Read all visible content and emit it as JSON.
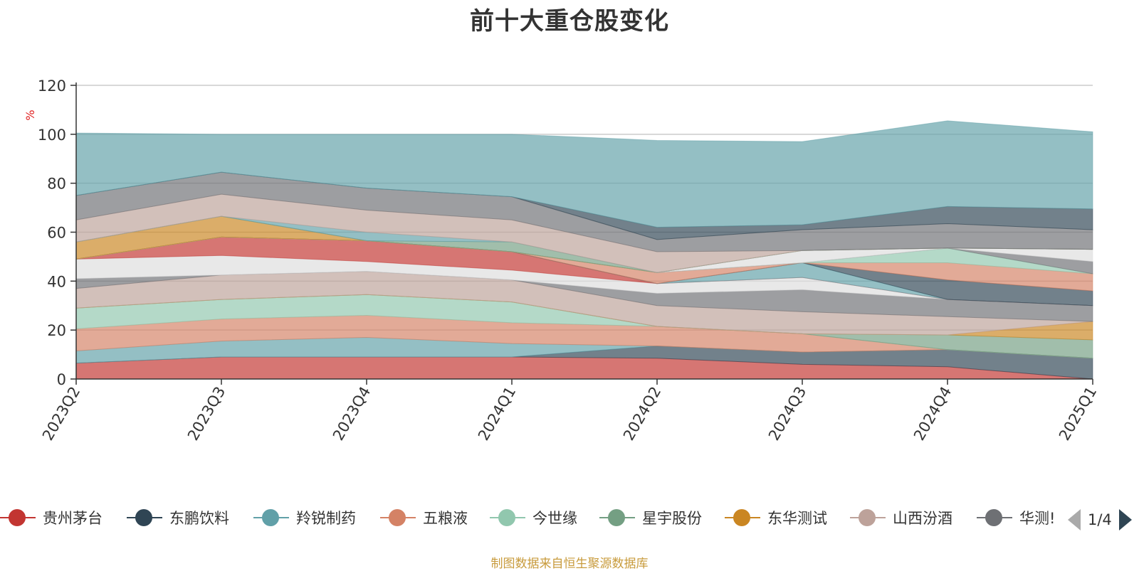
{
  "title": "前十大重仓股变化",
  "source_note": "制图数据来自恒生聚源数据库",
  "pager": {
    "text": "1/4"
  },
  "legend_items": [
    {
      "name": "贵州茅台",
      "color": "#c23531"
    },
    {
      "name": "东鹏饮料",
      "color": "#2f4554"
    },
    {
      "name": "羚锐制药",
      "color": "#61a0a8"
    },
    {
      "name": "五粮液",
      "color": "#d48265"
    },
    {
      "name": "今世缘",
      "color": "#91c7ae"
    },
    {
      "name": "星宇股份",
      "color": "#749f83"
    },
    {
      "name": "东华测试",
      "color": "#ca8622"
    },
    {
      "name": "山西汾酒",
      "color": "#bda29a"
    },
    {
      "name": "华测!",
      "color": "#6e7074"
    }
  ],
  "chart_data": {
    "type": "area",
    "stacked": true,
    "title": "前十大重仓股变化",
    "ylabel": "%",
    "ylim": [
      0,
      120
    ],
    "yticks": [
      0,
      20,
      40,
      60,
      80,
      100,
      120
    ],
    "grid": true,
    "legend_position": "bottom",
    "categories": [
      "2023Q2",
      "2023Q3",
      "2023Q4",
      "2024Q1",
      "2024Q2",
      "2024Q3",
      "2024Q4",
      "2025Q1"
    ],
    "bands": [
      {
        "color": "#c23531",
        "values": [
          6.5,
          9,
          9,
          9,
          8.5,
          6,
          5,
          0
        ]
      },
      {
        "color": "#2f4554",
        "values": [
          0,
          0,
          0,
          0,
          5,
          5,
          7,
          8.5
        ]
      },
      {
        "color": "#61a0a8",
        "values": [
          5,
          6.5,
          8,
          5.5,
          0,
          0,
          0,
          0
        ]
      },
      {
        "color": "#d48265",
        "values": [
          9,
          9,
          9,
          8.5,
          8,
          7.5,
          0,
          0
        ]
      },
      {
        "color": "#91c7ae",
        "values": [
          8.5,
          8,
          8.5,
          8.5,
          0,
          0,
          0,
          0
        ]
      },
      {
        "color": "#749f83",
        "values": [
          0,
          0,
          0,
          0,
          0,
          0,
          6,
          7.5
        ]
      },
      {
        "color": "#ca8622",
        "values": [
          0,
          0,
          0,
          0,
          0,
          0,
          0,
          7.5
        ]
      },
      {
        "color": "#bda29a",
        "values": [
          8,
          10,
          9.5,
          9,
          8.5,
          9,
          7.5,
          0
        ]
      },
      {
        "color": "#6e7074",
        "values": [
          4,
          0,
          0,
          0,
          5,
          9,
          7,
          6.5
        ]
      },
      {
        "color": "#dddddd",
        "values": [
          8,
          8,
          4,
          4,
          4,
          5,
          0,
          0
        ]
      },
      {
        "color": "#c23531",
        "values": [
          0,
          7.5,
          8.5,
          7.5,
          0,
          0,
          0,
          0
        ]
      },
      {
        "color": "#61a0a8",
        "values": [
          0,
          0,
          0,
          0,
          0,
          6,
          0,
          0
        ]
      },
      {
        "color": "#2f4554",
        "values": [
          0,
          0,
          0,
          0,
          0,
          0,
          8,
          6
        ]
      },
      {
        "color": "#d48265",
        "values": [
          0,
          0,
          0,
          0,
          4.5,
          0,
          7,
          7
        ]
      },
      {
        "color": "#91c7ae",
        "values": [
          0,
          0,
          0,
          0,
          0,
          0,
          6,
          0
        ]
      },
      {
        "color": "#6e7074",
        "values": [
          0,
          0,
          0,
          0,
          0,
          0,
          0,
          5
        ]
      },
      {
        "color": "#dddddd",
        "values": [
          0,
          0,
          0,
          0,
          0,
          5,
          0,
          5
        ]
      },
      {
        "color": "#ca8622",
        "values": [
          7,
          8.5,
          0,
          0,
          0,
          0,
          0,
          0
        ]
      },
      {
        "color": "#749f83",
        "values": [
          0,
          0,
          0,
          4,
          0,
          0,
          0,
          0
        ]
      },
      {
        "color": "#61a0a8",
        "values": [
          0,
          0,
          3.5,
          0,
          0,
          0,
          0,
          0
        ]
      },
      {
        "color": "#bda29a",
        "values": [
          9,
          9,
          9,
          9,
          8.5,
          0,
          0,
          0
        ]
      },
      {
        "color": "#6e7074",
        "values": [
          10,
          9,
          9,
          9.5,
          5,
          8.5,
          10,
          8
        ]
      },
      {
        "color": "#2f4554",
        "values": [
          0,
          0,
          0,
          0,
          5,
          2,
          7,
          8.5
        ]
      },
      {
        "color": "#61a0a8",
        "values": [
          25.5,
          15.5,
          22,
          25.5,
          35.5,
          34,
          35,
          31.5
        ]
      }
    ]
  }
}
